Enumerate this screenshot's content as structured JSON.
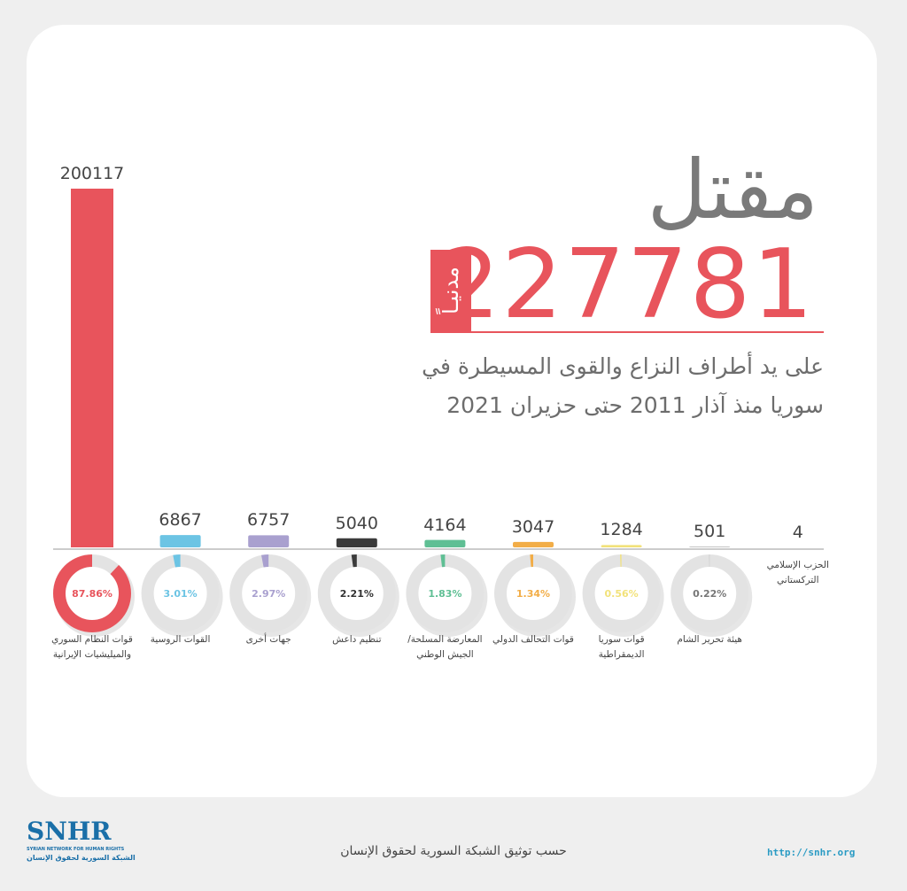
{
  "chart_data": {
    "type": "bar",
    "title": "مقتل",
    "headline_value": 227781,
    "headline_label": "مدنيـاً",
    "subtitle": "على يد أطراف النزاع والقوى المسيطرة في سوريا منذ آذار 2011  حتى حزيران 2021",
    "categories": [
      "قوات النظام السوري والميليشيات الإيرانية",
      "القوات الروسية",
      "جهات أخرى",
      "تنظيم داعش",
      "المعارضة المسلحة/الجيش الوطني",
      "قوات التحالف الدولي",
      "قوات سوريا الديمقراطية",
      "هيئة تحرير الشام",
      "الحزب الإسلامي التركستاني"
    ],
    "values": [
      200117,
      6867,
      6757,
      5040,
      4164,
      3047,
      1284,
      501,
      4
    ],
    "colors": [
      "#e8545c",
      "#6cc4e4",
      "#a9a0cf",
      "#3b3b3b",
      "#5fbf94",
      "#f2ad47",
      "#f2e27a",
      "#c4c4c4",
      "#c4c4c4"
    ],
    "percentages": [
      87.86,
      3.01,
      2.97,
      2.21,
      1.83,
      1.34,
      0.56,
      0.22,
      null
    ],
    "percentage_labels": [
      "87.86%",
      "3.01%",
      "2.97%",
      "2.21%",
      "1.83%",
      "1.34%",
      "0.56%",
      "0.22%",
      null
    ],
    "source": "حسب توثيق الشبكة السورية لحقوق الإنسان",
    "url": "http://snhr.org",
    "logo": "SNHR",
    "logo_en": "SYRIAN NETWORK FOR HUMAN RIGHTS",
    "logo_ar": "الشبكة السورية لحقوق الإنسان"
  }
}
